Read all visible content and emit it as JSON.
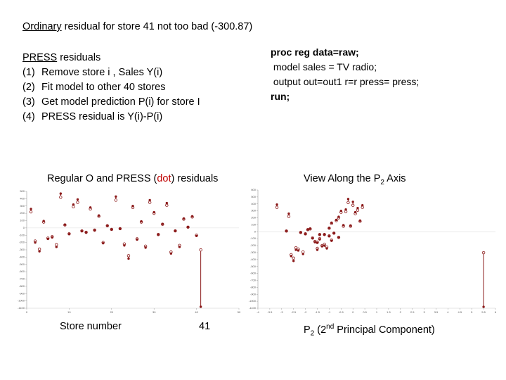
{
  "title": [
    "Ordinary",
    " residual for store 41 not too bad (-300.87)"
  ],
  "press": {
    "heading": [
      "PRESS",
      " residuals"
    ],
    "steps": [
      {
        "num": "(1)",
        "text": "Remove store i , Sales Y(i)"
      },
      {
        "num": "(2)",
        "text": "Fit model to other 40 stores"
      },
      {
        "num": "(3)",
        "text": "Get model prediction P(i) for store I"
      },
      {
        "num": "(4)",
        "text": "PRESS residual is Y(i)-P(i)"
      }
    ]
  },
  "code": [
    "proc reg data=raw;",
    " model sales = TV radio;",
    " output out=out1 r=r press= press;",
    "run;"
  ],
  "left_caption": [
    "Regular O and PRESS (",
    "dot",
    ") residuals"
  ],
  "right_caption": [
    "View Along the P",
    "2",
    " Axis"
  ],
  "left_xlabel": "Store number",
  "left_annotation": "41",
  "right_xlabel": [
    "P",
    "2",
    " (2",
    "nd",
    " Principal Component)"
  ],
  "chart_data": [
    {
      "type": "scatter",
      "x": [
        1,
        2,
        3,
        4,
        5,
        6,
        7,
        8,
        9,
        10,
        11,
        12,
        13,
        14,
        15,
        16,
        17,
        18,
        19,
        20,
        21,
        22,
        23,
        24,
        25,
        26,
        27,
        28,
        29,
        30,
        31,
        32,
        33,
        34,
        35,
        36,
        37,
        38,
        39,
        40,
        41
      ],
      "series": [
        {
          "marker": "circle",
          "color": "#8b1a1a",
          "values": [
            220,
            -180,
            -290,
            80,
            -140,
            -120,
            -230,
            420,
            40,
            -80,
            290,
            350,
            -40,
            -60,
            260,
            -30,
            160,
            -200,
            30,
            -20,
            380,
            -10,
            -220,
            -380,
            280,
            -150,
            80,
            -250,
            350,
            200,
            -90,
            50,
            310,
            -330,
            -40,
            -240,
            120,
            10,
            150,
            -100,
            -300.87
          ]
        },
        {
          "marker": "dot",
          "color": "#8b1a1a",
          "values": [
            260,
            -200,
            -320,
            95,
            -150,
            -130,
            -260,
            470,
            45,
            -85,
            320,
            390,
            -45,
            -65,
            280,
            -35,
            170,
            -210,
            32,
            -22,
            430,
            -12,
            -240,
            -420,
            300,
            -160,
            90,
            -270,
            380,
            215,
            -95,
            55,
            340,
            -350,
            -42,
            -260,
            130,
            12,
            160,
            -110,
            -1080
          ]
        }
      ],
      "xlim": [
        0,
        50
      ],
      "xticks": [
        0,
        10,
        20,
        30,
        40,
        50
      ],
      "ylim": [
        -1100,
        500
      ],
      "yticks": [
        500,
        400,
        300,
        200,
        100,
        0,
        -100,
        -200,
        -300,
        -400,
        -500,
        -600,
        -700,
        -800,
        -900,
        -1000,
        -1100
      ]
    },
    {
      "type": "scatter",
      "x": [
        -2.7,
        -1.2,
        -2.1,
        -0.4,
        -1.6,
        -0.9,
        -2.4,
        -0.2,
        -1.8,
        -0.6,
        -0.3,
        -3.2,
        -1.4,
        -1.0,
        0.1,
        -2.0,
        -0.7,
        -1.3,
        -1.9,
        -0.8,
        0.0,
        -2.2,
        -1.1,
        -2.5,
        -0.5,
        -1.5,
        -0.1,
        -2.3,
        0.4,
        -0.6,
        -1.7,
        -1.0,
        0.2,
        -2.6,
        -1.2,
        -1.5,
        -0.9,
        -2.8,
        0.3,
        -1.4,
        5.5
      ],
      "series": [
        {
          "marker": "circle",
          "color": "#8b1a1a",
          "values": [
            220,
            -180,
            -290,
            80,
            -140,
            -120,
            -230,
            420,
            40,
            -80,
            290,
            350,
            -40,
            -60,
            260,
            -30,
            160,
            -200,
            30,
            -20,
            380,
            -10,
            -220,
            -380,
            280,
            -150,
            80,
            -250,
            350,
            200,
            -90,
            50,
            310,
            -330,
            -40,
            -240,
            120,
            10,
            150,
            -100,
            -300.87
          ]
        },
        {
          "marker": "dot",
          "color": "#8b1a1a",
          "values": [
            260,
            -200,
            -320,
            95,
            -150,
            -130,
            -260,
            470,
            45,
            -85,
            320,
            390,
            -45,
            -65,
            280,
            -35,
            170,
            -210,
            32,
            -22,
            430,
            -12,
            -240,
            -420,
            300,
            -160,
            90,
            -270,
            380,
            215,
            -95,
            55,
            340,
            -350,
            -42,
            -260,
            130,
            12,
            160,
            -110,
            -1080
          ]
        }
      ],
      "xlim": [
        -4,
        6
      ],
      "xticks": [
        -4,
        -3.5,
        -3,
        -2.5,
        -2,
        -1.5,
        -1,
        -0.5,
        0,
        0.5,
        1,
        1.5,
        2,
        2.5,
        3,
        3.5,
        4,
        4.5,
        5,
        5.5,
        6
      ],
      "ylim": [
        -1100,
        600
      ],
      "yticks": [
        600,
        500,
        400,
        300,
        200,
        100,
        0,
        -100,
        -200,
        -300,
        -400,
        -500,
        -600,
        -700,
        -800,
        -900,
        -1000,
        -1100
      ]
    }
  ]
}
